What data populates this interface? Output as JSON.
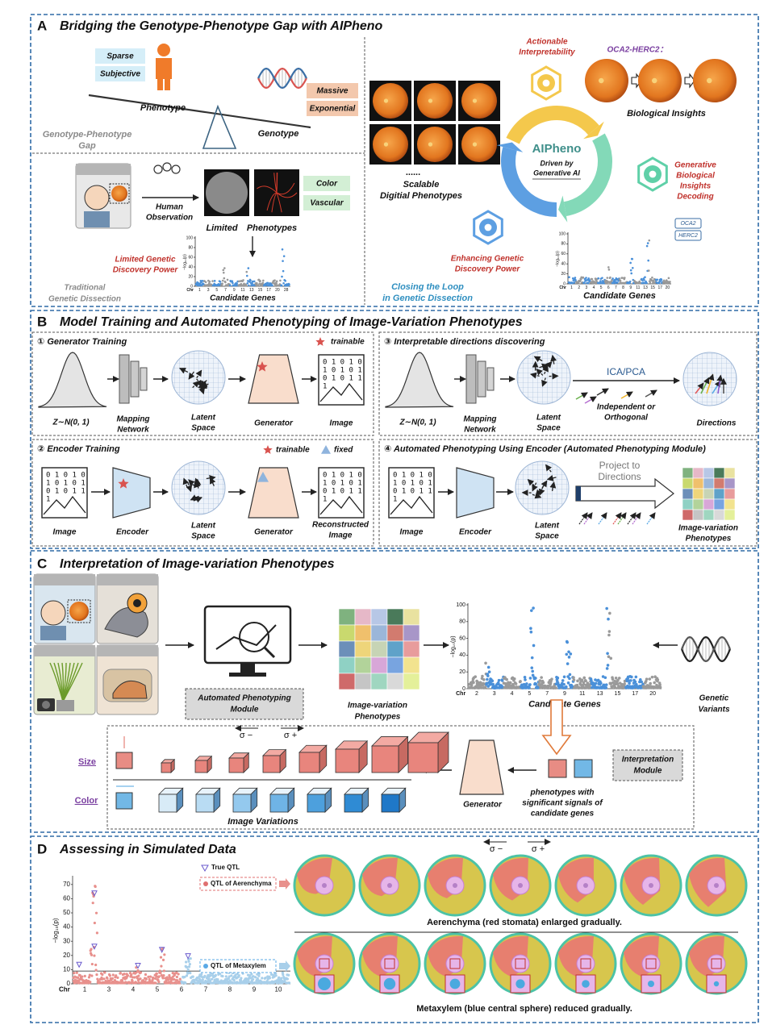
{
  "panel_a": {
    "letter": "A",
    "title": "Bridging the Genotype-Phenotype Gap with AIPheno",
    "phenotype_tags": [
      "Sparse",
      "Subjective"
    ],
    "genotype_tags": [
      "Massive",
      "Exponential"
    ],
    "phenotype": "Phenotype",
    "genotype": "Genotype",
    "gap": [
      "Genotype-Phenotype",
      "Gap"
    ],
    "human_observation": [
      "Human",
      "Observation"
    ],
    "limited_phenotypes": [
      "Limited",
      "Phenotypes"
    ],
    "phenotype_types": [
      "Color",
      "Vascular"
    ],
    "limited_power": [
      "Limited Genetic",
      "Discovery Power"
    ],
    "traditional": [
      "Traditional",
      "Genetic Dissection"
    ],
    "left_plot": {
      "yticks": [
        0,
        20,
        40,
        60,
        80,
        100
      ],
      "ylim": [
        0,
        100
      ],
      "y_label": "−log₁₀(p)",
      "chromosomes": [
        "Chr",
        "1",
        "3",
        "5",
        "7",
        "9",
        "11",
        "13",
        "15",
        "17",
        "20",
        "28"
      ],
      "x_label": "Candidate Genes"
    },
    "ellipsis": "......",
    "scalable": [
      "Scalable",
      "Digitial Phenotypes"
    ],
    "actionable": [
      "Actionable",
      "Interpretability"
    ],
    "oca2_herc2": "OCA2-HERC2：",
    "biological_insights": "Biological Insights",
    "aipheno": "AIPheno",
    "driven_by": [
      "Driven by",
      "Generative AI"
    ],
    "generative_decoding": [
      "Generative",
      "Biological",
      "Insights",
      "Decoding"
    ],
    "enhancing": [
      "Enhancing Genetic",
      "Discovery Power"
    ],
    "closing": [
      "Closing the Loop",
      "in Genetic Dissection"
    ],
    "right_plot": {
      "yticks": [
        0,
        20,
        40,
        60,
        80,
        100
      ],
      "ylim": [
        0,
        100
      ],
      "y_label": "−log₁₀(p)",
      "chromosomes": [
        "Chr",
        "1",
        "2",
        "3",
        "4",
        "5",
        "6",
        "7",
        "8",
        "9",
        "11",
        "13",
        "15",
        "17",
        "20"
      ],
      "x_label": "Candidate Genes",
      "gene_tags": [
        "OCA2",
        "HERC2"
      ]
    }
  },
  "panel_b": {
    "letter": "B",
    "title": "Model Training and Automated Phenotyping of Image-Variation Phenotypes",
    "binary": [
      "0 1 0 1 0",
      "1 0 1 0 1",
      "0 1 0 1 1",
      "1"
    ],
    "generator_training": {
      "heading": "① Generator Training",
      "trainable": "trainable",
      "z": "Z∼N(0, 1)",
      "mapping": [
        "Mapping",
        "Network"
      ],
      "latent": [
        "Latent",
        "Space"
      ],
      "generator": "Generator",
      "image": "Image"
    },
    "directions": {
      "heading": "③ Interpretable directions discovering",
      "z": "Z∼N(0, 1)",
      "mapping": [
        "Mapping",
        "Network"
      ],
      "latent": [
        "Latent",
        "Space"
      ],
      "method": "ICA/PCA",
      "constraint": [
        "Independent or",
        "Orthogonal"
      ],
      "directions": "Directions"
    },
    "encoder_training": {
      "heading": "② Encoder Training",
      "trainable": "trainable",
      "fixed": "fixed",
      "image": "Image",
      "encoder": "Encoder",
      "latent": [
        "Latent",
        "Space"
      ],
      "generator": "Generator",
      "reconstructed": [
        "Reconstructed",
        "Image"
      ]
    },
    "automated": {
      "heading": "④ Automated Phenotyping Using Encoder (Automated Phenotyping Module)",
      "image": "Image",
      "encoder": "Encoder",
      "latent": [
        "Latent",
        "Space"
      ],
      "project": [
        "Project to",
        "Directions"
      ],
      "phenotypes": [
        "Image-variation",
        "Phenotypes"
      ]
    }
  },
  "panel_c": {
    "letter": "C",
    "title": "Interpretation of Image-variation Phenotypes",
    "module": [
      "Automated Phenotyping",
      "Module"
    ],
    "phenotypes": [
      "Image-variation",
      "Phenotypes"
    ],
    "plot": {
      "yticks": [
        0,
        20,
        40,
        60,
        80,
        100
      ],
      "ylim": [
        0,
        100
      ],
      "y_label": "−log₁₀(p)",
      "chromosomes": [
        "Chr",
        "2",
        "3",
        "4",
        "5",
        "7",
        "9",
        "11",
        "13",
        "15",
        "17",
        "20"
      ],
      "x_label": "Candidate Genes"
    },
    "variants": [
      "Genetic",
      "Variants"
    ],
    "sigma": [
      "σ −",
      "σ +"
    ],
    "size": "Size",
    "color": "Color",
    "image_variations": "Image Variations",
    "generator": "Generator",
    "significant": [
      "phenotypes with",
      "significant signals of",
      "candidate genes"
    ],
    "interpretation": [
      "Interpretation",
      "Module"
    ]
  },
  "panel_d": {
    "letter": "D",
    "title": "Assessing in Simulated Data",
    "legend": [
      "True QTL",
      "QTL of Aerenchyma",
      "QTL of Metaxylem"
    ],
    "plot": {
      "yticks": [
        0,
        10,
        20,
        30,
        40,
        50,
        60,
        70
      ],
      "ylim": [
        0,
        75
      ],
      "y_label": "−log₁₀(p)",
      "chromosomes": [
        "Chr",
        "1",
        "3",
        "4",
        "5",
        "6",
        "7",
        "8",
        "9",
        "10"
      ]
    },
    "sigma": [
      "σ −",
      "σ +"
    ],
    "aerenchyma_caption": "Aerenchyma (red stomata) enlarged gradually.",
    "metaxylem_caption": "Metaxylem (blue central sphere) reduced gradually."
  }
}
